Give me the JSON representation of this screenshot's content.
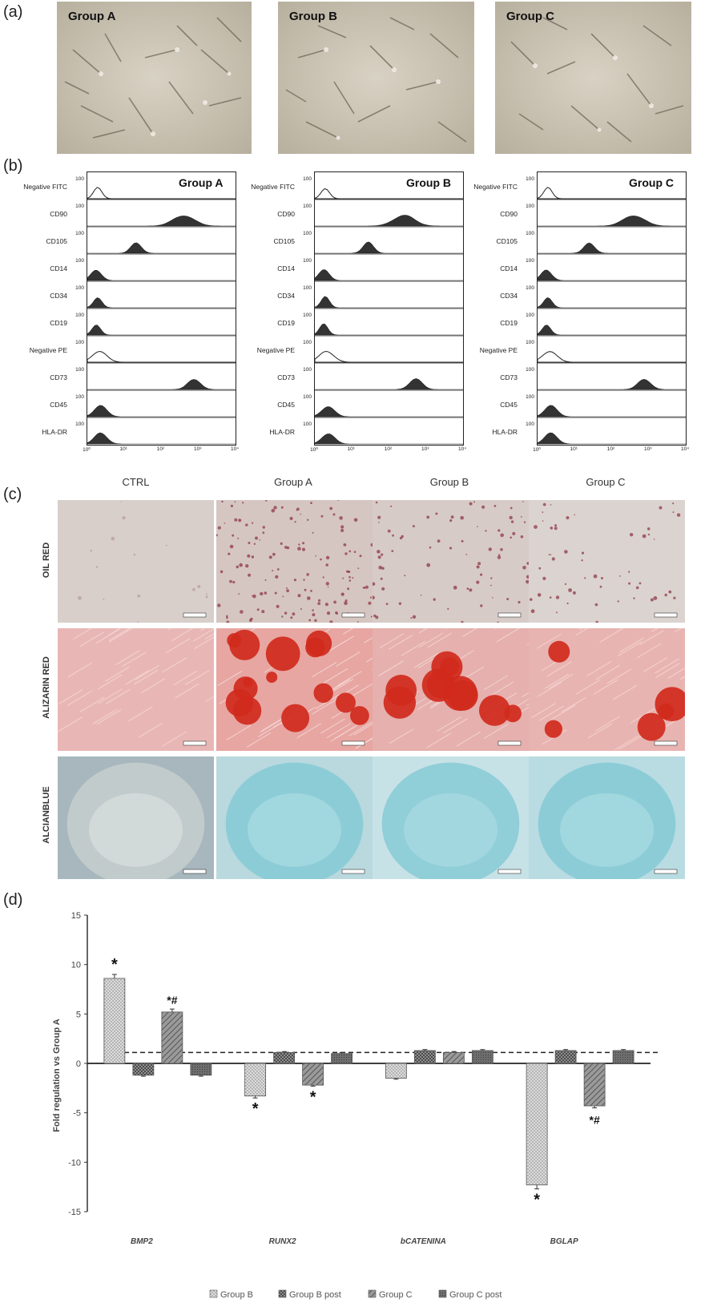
{
  "panels": {
    "a": {
      "label": "(a)",
      "images": [
        {
          "title": "Group A"
        },
        {
          "title": "Group B"
        },
        {
          "title": "Group C"
        }
      ]
    },
    "b": {
      "label": "(b)",
      "groups": [
        "Group A",
        "Group B",
        "Group C"
      ],
      "markers": [
        "Negative FITC",
        "CD90",
        "CD105",
        "CD14",
        "CD34",
        "CD19",
        "Negative PE",
        "CD73",
        "CD45",
        "HLA-DR"
      ],
      "y_tick": "100",
      "x_ticks": [
        "10⁰",
        "10¹",
        "10²",
        "10³",
        "10⁴"
      ]
    },
    "c": {
      "label": "(c)",
      "columns": [
        "CTRL",
        "Group A",
        "Group B",
        "Group C"
      ],
      "rows": [
        "OIL RED",
        "ALIZARIN RED",
        "ALCIANBLUE"
      ]
    },
    "d": {
      "label": "(d)"
    }
  },
  "chart_data": {
    "type": "bar",
    "categories": [
      "BMP2",
      "RUNX2",
      "bCATENINA",
      "BGLAP"
    ],
    "series": [
      {
        "name": "Group B",
        "values": [
          8.6,
          -3.3,
          -1.5,
          -12.3
        ],
        "errors": [
          0.4,
          0.2,
          0.1,
          0.4
        ]
      },
      {
        "name": "Group B post",
        "values": [
          -1.2,
          1.1,
          1.3,
          1.3
        ],
        "errors": [
          0.1,
          0.1,
          0.1,
          0.1
        ]
      },
      {
        "name": "Group C",
        "values": [
          5.2,
          -2.2,
          1.1,
          -4.3
        ],
        "errors": [
          0.3,
          0.1,
          0.1,
          0.2
        ]
      },
      {
        "name": "Group C post",
        "values": [
          -1.2,
          1.0,
          1.3,
          1.3
        ],
        "errors": [
          0.1,
          0.1,
          0.1,
          0.1
        ]
      }
    ],
    "annotations": [
      {
        "category": "BMP2",
        "series": "Group B",
        "text": "*"
      },
      {
        "category": "BMP2",
        "series": "Group C",
        "text": "*#"
      },
      {
        "category": "RUNX2",
        "series": "Group B",
        "text": "*"
      },
      {
        "category": "RUNX2",
        "series": "Group C",
        "text": "*"
      },
      {
        "category": "BGLAP",
        "series": "Group B",
        "text": "*"
      },
      {
        "category": "BGLAP",
        "series": "Group C",
        "text": "*#"
      }
    ],
    "reference_line": 1.1,
    "ylabel": "Fold regulation vs Group A",
    "ylim": [
      -15,
      15
    ],
    "yticks": [
      "15",
      "10",
      "5",
      "0",
      "-5",
      "-10",
      "-15"
    ],
    "legend_position": "bottom"
  }
}
